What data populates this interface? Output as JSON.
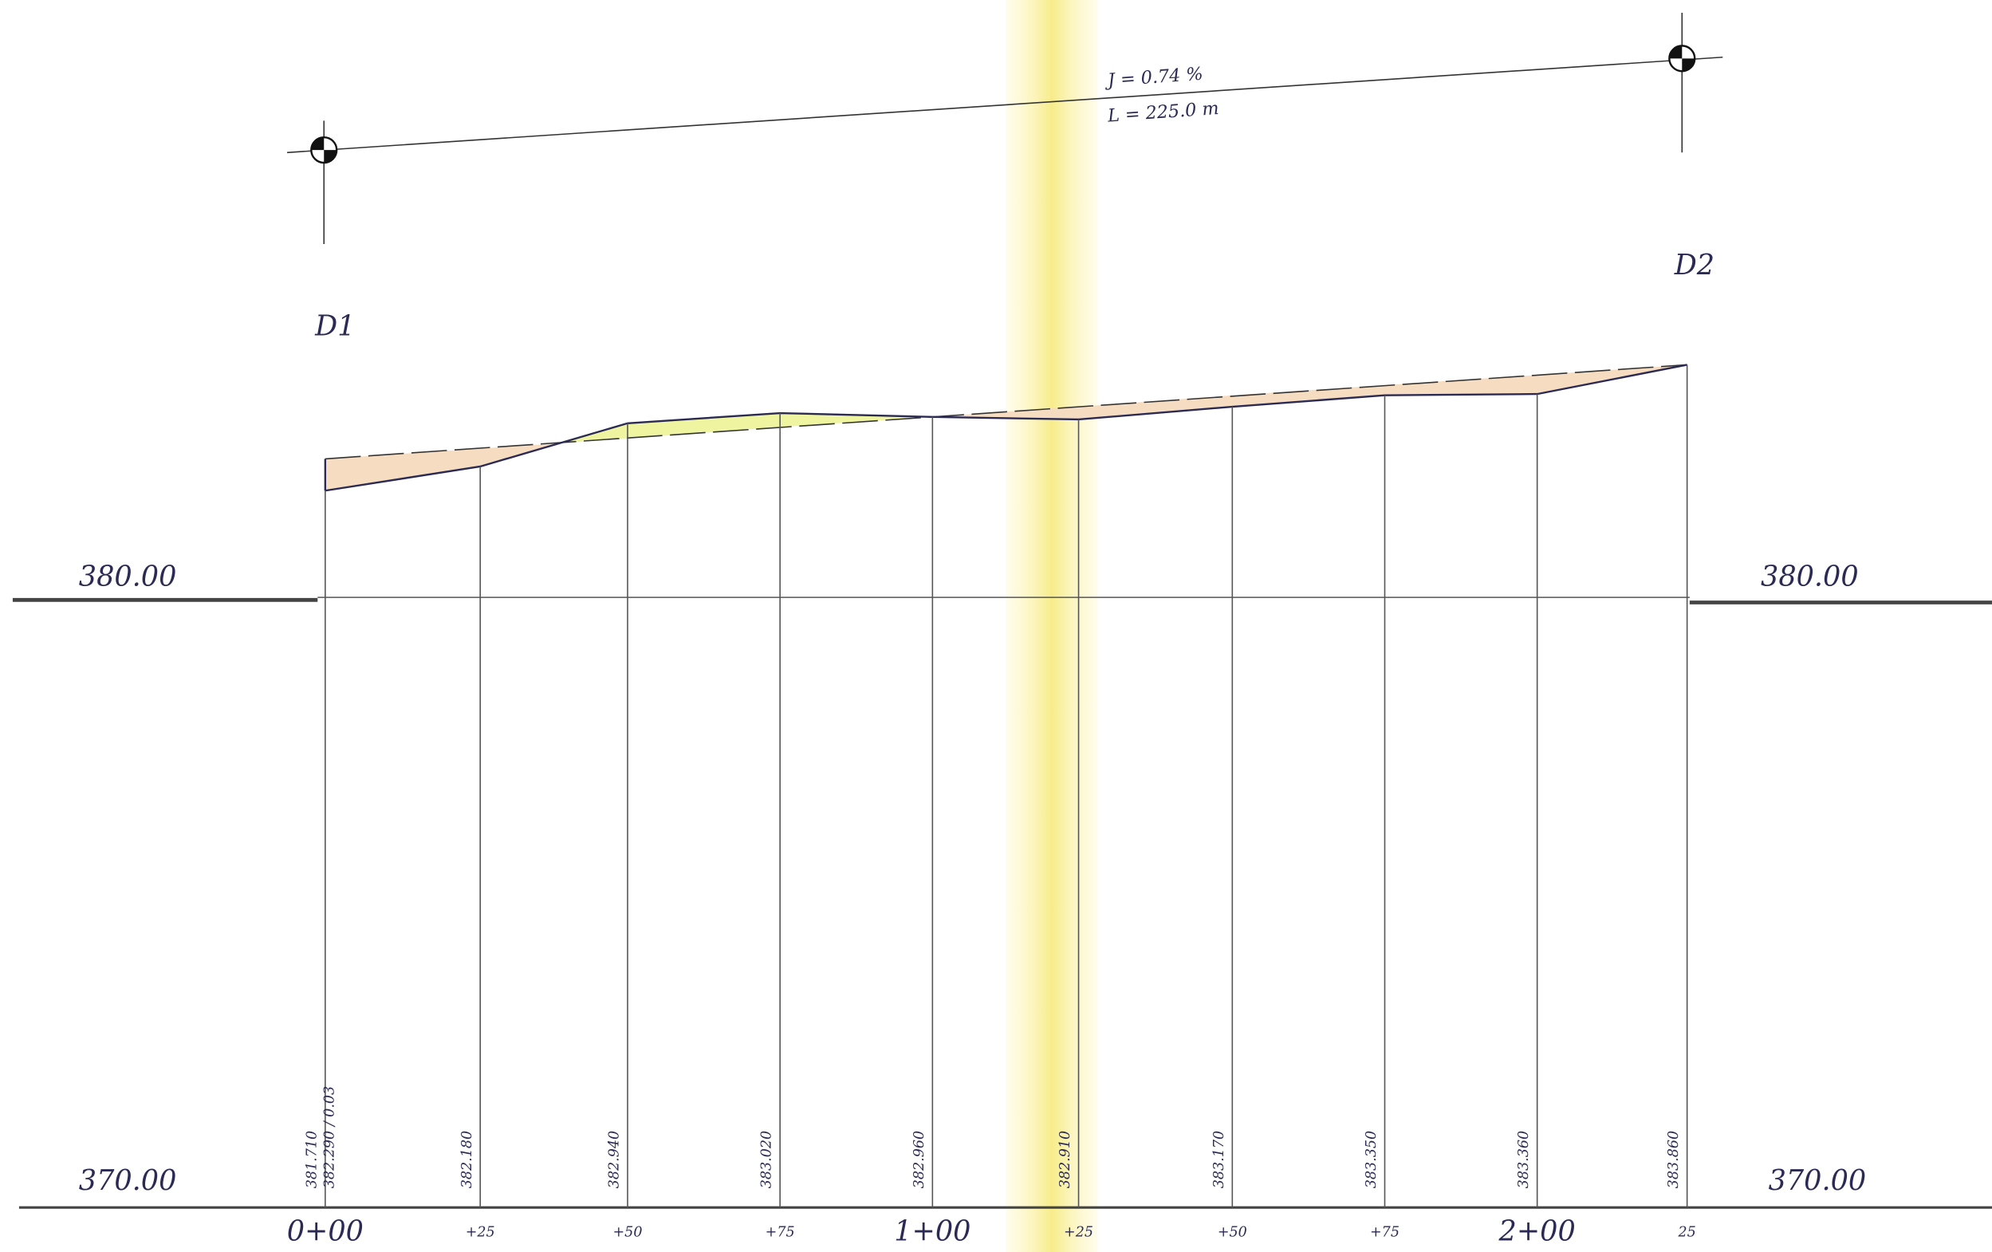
{
  "profile": {
    "grade": {
      "slope": "J = 0.74 %",
      "length": "L = 225.0 m"
    },
    "benchmarks": [
      "D1",
      "D2"
    ],
    "datum_upper": {
      "left": "380.00",
      "right": "380.00"
    },
    "datum_lower": {
      "left": "370.00",
      "right": "370.00"
    },
    "stations": [
      {
        "label": "0+00",
        "elevation": "381.710",
        "note": "382.290 / 0.03"
      },
      {
        "label": "+25",
        "elevation": "382.180"
      },
      {
        "label": "+50",
        "elevation": "382.940"
      },
      {
        "label": "+75",
        "elevation": "383.020"
      },
      {
        "label": "1+00",
        "elevation": "382.960"
      },
      {
        "label": "+25",
        "elevation": "382.910"
      },
      {
        "label": "+50",
        "elevation": "383.170"
      },
      {
        "label": "+75",
        "elevation": "383.350"
      },
      {
        "label": "2+00",
        "elevation": "383.360"
      },
      {
        "label": "25",
        "elevation": "383.860"
      }
    ]
  }
}
